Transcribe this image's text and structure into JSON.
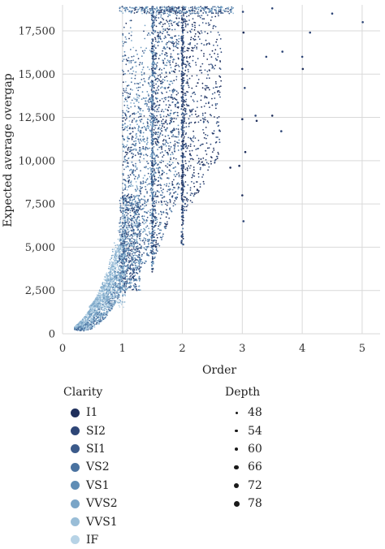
{
  "chart_data": {
    "type": "scatter",
    "xlabel": "Order",
    "ylabel": "Expected average overgap",
    "xlim": [
      0,
      5.3
    ],
    "ylim": [
      0,
      19000
    ],
    "xticks": [
      "0",
      "1",
      "2",
      "3",
      "4",
      "5"
    ],
    "yticks": [
      "0",
      "2,500",
      "5,000",
      "7,500",
      "10,000",
      "12,500",
      "15,000",
      "17,500"
    ],
    "ytick_values": [
      0,
      2500,
      5000,
      7500,
      10000,
      12500,
      15000,
      17500
    ],
    "xtick_values": [
      0,
      1,
      2,
      3,
      4,
      5
    ],
    "grid": true,
    "color_legend": {
      "title": "Clarity",
      "items": [
        {
          "label": "I1",
          "color": "#1f2f5c"
        },
        {
          "label": "SI2",
          "color": "#2e4677"
        },
        {
          "label": "SI1",
          "color": "#3b5a8a"
        },
        {
          "label": "VS2",
          "color": "#4a72a0"
        },
        {
          "label": "VS1",
          "color": "#5f8db5"
        },
        {
          "label": "VVS2",
          "color": "#7aa5c7"
        },
        {
          "label": "VVS1",
          "color": "#99bdd7"
        },
        {
          "label": "IF",
          "color": "#b7d3e6"
        }
      ]
    },
    "size_legend": {
      "title": "Depth",
      "items": [
        {
          "label": "48",
          "value": 48
        },
        {
          "label": "54",
          "value": 54
        },
        {
          "label": "60",
          "value": 60
        },
        {
          "label": "66",
          "value": 66
        },
        {
          "label": "72",
          "value": 72
        },
        {
          "label": "78",
          "value": 78
        }
      ]
    },
    "series_clusters": [
      {
        "x_min": 0.2,
        "x_max": 1.05,
        "y_base": 400,
        "curve": "rising",
        "note": "dense lower band"
      },
      {
        "x_min": 1.0,
        "x_max": 1.55,
        "y_range": [
          2000,
          19000
        ]
      },
      {
        "x_min": 1.5,
        "x_max": 2.0,
        "y_range": [
          4000,
          19000
        ]
      },
      {
        "x_min": 2.0,
        "x_max": 2.6,
        "y_range": [
          6500,
          19000
        ]
      }
    ],
    "outliers": [
      {
        "x": 3.01,
        "y": 18600
      },
      {
        "x": 3.02,
        "y": 17400
      },
      {
        "x": 3.0,
        "y": 15300
      },
      {
        "x": 3.04,
        "y": 14200
      },
      {
        "x": 3.0,
        "y": 12400
      },
      {
        "x": 3.22,
        "y": 12600
      },
      {
        "x": 3.24,
        "y": 12300
      },
      {
        "x": 3.5,
        "y": 12600
      },
      {
        "x": 3.65,
        "y": 11700
      },
      {
        "x": 3.4,
        "y": 16000
      },
      {
        "x": 3.67,
        "y": 16300
      },
      {
        "x": 4.0,
        "y": 16000
      },
      {
        "x": 4.01,
        "y": 15300
      },
      {
        "x": 4.13,
        "y": 17400
      },
      {
        "x": 4.5,
        "y": 18500
      },
      {
        "x": 5.01,
        "y": 18000
      },
      {
        "x": 3.0,
        "y": 8000
      },
      {
        "x": 3.02,
        "y": 6500
      },
      {
        "x": 3.5,
        "y": 18800
      },
      {
        "x": 3.05,
        "y": 10500
      },
      {
        "x": 2.95,
        "y": 9700
      },
      {
        "x": 2.8,
        "y": 9600
      }
    ]
  }
}
